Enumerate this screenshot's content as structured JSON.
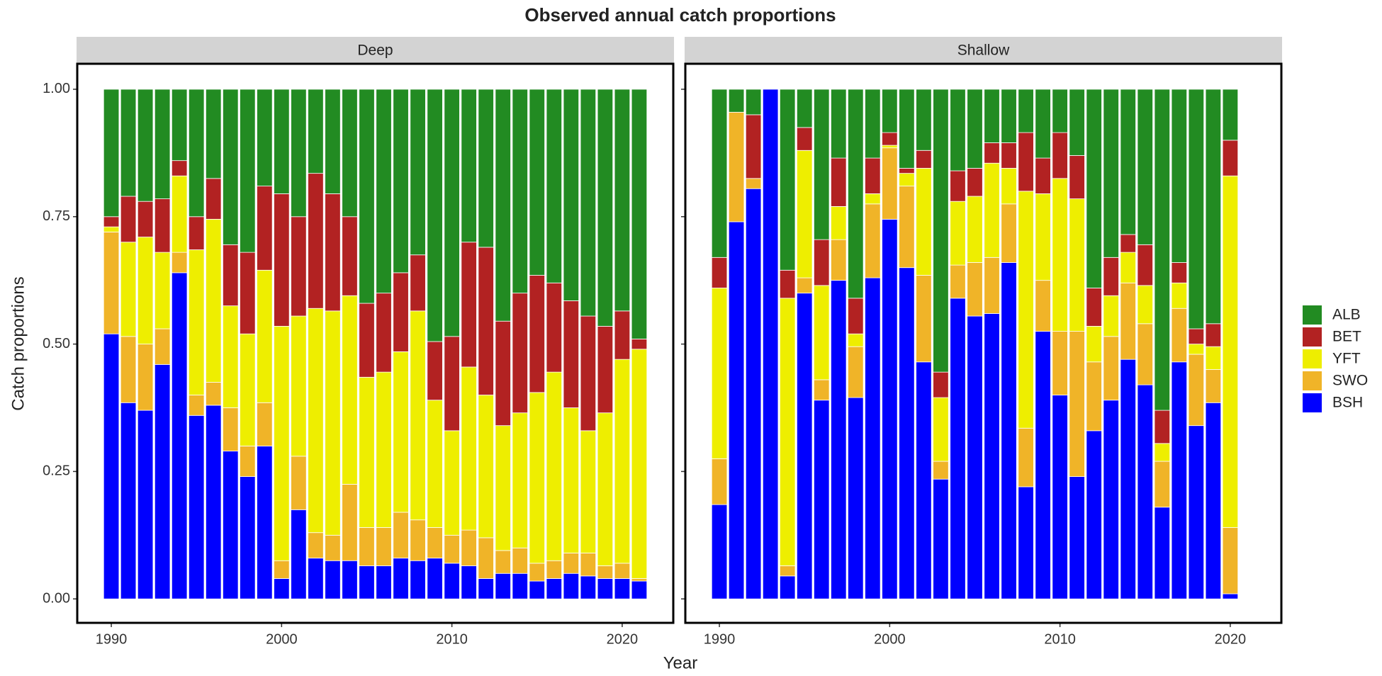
{
  "chart_data": {
    "type": "bar",
    "stacked": true,
    "title": "Observed annual catch proportions",
    "x_label": "Year",
    "y_label": "Catch proportions",
    "xlim": [
      1988,
      2023
    ],
    "xticks": [
      1990,
      2000,
      2010,
      2020
    ],
    "ylim": [
      -0.047,
      1.05
    ],
    "yticks": [
      {
        "value": 0,
        "label": "0.00"
      },
      {
        "value": 0.25,
        "label": "0.25"
      },
      {
        "value": 0.5,
        "label": "0.50"
      },
      {
        "value": 0.75,
        "label": "0.75"
      },
      {
        "value": 1,
        "label": "1.00"
      }
    ],
    "legend_position": "right",
    "legend": [
      {
        "name": "ALB",
        "color": "#228b22"
      },
      {
        "name": "BET",
        "color": "#b22222"
      },
      {
        "name": "YFT",
        "color": "#eeee00"
      },
      {
        "name": "SWO",
        "color": "#f0b428"
      },
      {
        "name": "BSH",
        "color": "#0000ff"
      }
    ],
    "facets": [
      {
        "title": "Deep",
        "x": [
          1990,
          1991,
          1992,
          1993,
          1994,
          1995,
          1996,
          1997,
          1998,
          1999,
          2000,
          2001,
          2002,
          2003,
          2004,
          2005,
          2006,
          2007,
          2008,
          2009,
          2010,
          2011,
          2012,
          2013,
          2014,
          2015,
          2016,
          2017,
          2018,
          2019,
          2020,
          2021
        ],
        "series": [
          {
            "values": [
              0.25,
              0.21,
              0.22,
              0.215,
              0.14,
              0.25,
              0.175,
              0.305,
              0.32,
              0.19,
              0.205,
              0.25,
              0.165,
              0.205,
              0.25,
              0.42,
              0.4,
              0.36,
              0.325,
              0.495,
              0.485,
              0.3,
              0.31,
              0.455,
              0.4,
              0.365,
              0.38,
              0.415,
              0.445,
              0.465,
              0.435,
              0.49
            ]
          },
          {
            "values": [
              0.02,
              0.09,
              0.07,
              0.105,
              0.03,
              0.065,
              0.08,
              0.12,
              0.16,
              0.165,
              0.26,
              0.195,
              0.265,
              0.23,
              0.155,
              0.145,
              0.155,
              0.155,
              0.11,
              0.115,
              0.185,
              0.245,
              0.29,
              0.205,
              0.235,
              0.23,
              0.175,
              0.21,
              0.225,
              0.17,
              0.095,
              0.02
            ]
          },
          {
            "values": [
              0.01,
              0.185,
              0.21,
              0.15,
              0.15,
              0.285,
              0.32,
              0.2,
              0.22,
              0.26,
              0.46,
              0.275,
              0.44,
              0.44,
              0.37,
              0.295,
              0.305,
              0.315,
              0.41,
              0.25,
              0.205,
              0.32,
              0.28,
              0.245,
              0.265,
              0.335,
              0.37,
              0.285,
              0.24,
              0.3,
              0.4,
              0.45
            ]
          },
          {
            "values": [
              0.2,
              0.13,
              0.13,
              0.07,
              0.04,
              0.04,
              0.045,
              0.085,
              0.06,
              0.085,
              0.035,
              0.105,
              0.05,
              0.05,
              0.15,
              0.075,
              0.075,
              0.09,
              0.08,
              0.06,
              0.055,
              0.07,
              0.08,
              0.045,
              0.05,
              0.035,
              0.035,
              0.04,
              0.045,
              0.025,
              0.03,
              0.005
            ]
          },
          {
            "values": [
              0.52,
              0.385,
              0.37,
              0.46,
              0.64,
              0.36,
              0.38,
              0.29,
              0.24,
              0.3,
              0.04,
              0.175,
              0.08,
              0.075,
              0.075,
              0.065,
              0.065,
              0.08,
              0.075,
              0.08,
              0.07,
              0.065,
              0.04,
              0.05,
              0.05,
              0.035,
              0.04,
              0.05,
              0.045,
              0.04,
              0.04,
              0.035
            ]
          }
        ]
      },
      {
        "title": "Shallow",
        "x": [
          1990,
          1991,
          1992,
          1993,
          1994,
          1995,
          1996,
          1997,
          1998,
          1999,
          2000,
          2001,
          2002,
          2003,
          2004,
          2005,
          2006,
          2007,
          2008,
          2009,
          2010,
          2011,
          2012,
          2013,
          2014,
          2015,
          2016,
          2017,
          2018,
          2019,
          2020
        ],
        "series": [
          {
            "values": [
              0.33,
              0.045,
              0.05,
              0,
              0.355,
              0.075,
              0.295,
              0.135,
              0.41,
              0.135,
              0.085,
              0.155,
              0.12,
              0.555,
              0.16,
              0.155,
              0.105,
              0.105,
              0.085,
              0.135,
              0.085,
              0.13,
              0.39,
              0.33,
              0.285,
              0.305,
              0.63,
              0.34,
              0.47,
              0.46,
              0.1
            ]
          },
          {
            "values": [
              0.06,
              0,
              0.125,
              0,
              0.055,
              0.045,
              0.09,
              0.095,
              0.07,
              0.07,
              0.025,
              0.01,
              0.035,
              0.05,
              0.06,
              0.055,
              0.04,
              0.05,
              0.115,
              0.07,
              0.09,
              0.085,
              0.075,
              0.075,
              0.035,
              0.08,
              0.065,
              0.04,
              0.03,
              0.045,
              0.07
            ]
          },
          {
            "values": [
              0.335,
              0,
              0,
              0,
              0.525,
              0.25,
              0.185,
              0.065,
              0.025,
              0.02,
              0.005,
              0.025,
              0.21,
              0.125,
              0.125,
              0.13,
              0.185,
              0.07,
              0.465,
              0.17,
              0.3,
              0.26,
              0.07,
              0.08,
              0.06,
              0.075,
              0.035,
              0.05,
              0.02,
              0.045,
              0.69
            ]
          },
          {
            "values": [
              0.09,
              0.215,
              0.02,
              0,
              0.02,
              0.03,
              0.04,
              0.08,
              0.1,
              0.145,
              0.14,
              0.16,
              0.17,
              0.035,
              0.065,
              0.105,
              0.11,
              0.115,
              0.115,
              0.1,
              0.125,
              0.285,
              0.135,
              0.125,
              0.15,
              0.12,
              0.09,
              0.105,
              0.14,
              0.065,
              0.13
            ]
          },
          {
            "values": [
              0.185,
              0.74,
              0.805,
              1,
              0.045,
              0.6,
              0.39,
              0.625,
              0.395,
              0.63,
              0.745,
              0.65,
              0.465,
              0.235,
              0.59,
              0.555,
              0.56,
              0.66,
              0.22,
              0.525,
              0.4,
              0.24,
              0.33,
              0.39,
              0.47,
              0.42,
              0.18,
              0.465,
              0.34,
              0.385,
              0.01
            ]
          }
        ]
      }
    ]
  }
}
